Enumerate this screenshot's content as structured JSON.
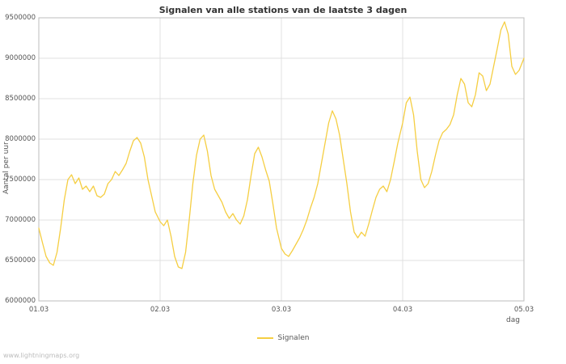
{
  "watermark": "www.lightningmaps.org",
  "chart_data": {
    "type": "line",
    "title": "Signalen van alle stations van de laatste 3 dagen",
    "xlabel": "dag",
    "ylabel": "Aantal per uur",
    "grid": true,
    "legend_position": "bottom-center",
    "xlim": [
      0,
      4
    ],
    "ylim": [
      6000000,
      9500000
    ],
    "yticks": [
      6000000,
      6500000,
      7000000,
      7500000,
      8000000,
      8500000,
      9000000,
      9500000
    ],
    "xticks": [
      {
        "label": "01.03",
        "pos": 0
      },
      {
        "label": "02.03",
        "pos": 1
      },
      {
        "label": "03.03",
        "pos": 2
      },
      {
        "label": "04.03",
        "pos": 3
      },
      {
        "label": "05.03",
        "pos": 4
      }
    ],
    "series": [
      {
        "name": "Signalen",
        "color": "#f5ce42",
        "x": [
          0,
          0.03,
          0.06,
          0.09,
          0.12,
          0.15,
          0.18,
          0.21,
          0.24,
          0.27,
          0.3,
          0.33,
          0.36,
          0.39,
          0.42,
          0.45,
          0.48,
          0.51,
          0.54,
          0.57,
          0.6,
          0.63,
          0.66,
          0.69,
          0.72,
          0.75,
          0.78,
          0.81,
          0.84,
          0.87,
          0.9,
          0.93,
          0.96,
          1,
          1.03,
          1.06,
          1.09,
          1.12,
          1.15,
          1.18,
          1.21,
          1.24,
          1.27,
          1.3,
          1.33,
          1.36,
          1.39,
          1.42,
          1.45,
          1.48,
          1.51,
          1.54,
          1.57,
          1.6,
          1.63,
          1.66,
          1.69,
          1.72,
          1.75,
          1.78,
          1.81,
          1.84,
          1.87,
          1.9,
          1.93,
          1.96,
          2,
          2.03,
          2.06,
          2.09,
          2.12,
          2.15,
          2.18,
          2.21,
          2.24,
          2.27,
          2.3,
          2.33,
          2.36,
          2.39,
          2.42,
          2.45,
          2.48,
          2.51,
          2.54,
          2.57,
          2.6,
          2.63,
          2.66,
          2.69,
          2.72,
          2.75,
          2.78,
          2.81,
          2.84,
          2.87,
          2.9,
          2.93,
          2.96,
          3,
          3.03,
          3.06,
          3.09,
          3.12,
          3.15,
          3.18,
          3.21,
          3.24,
          3.27,
          3.3,
          3.33,
          3.36,
          3.39,
          3.42,
          3.45,
          3.48,
          3.51,
          3.54,
          3.57,
          3.6,
          3.63,
          3.66,
          3.69,
          3.72,
          3.75,
          3.78,
          3.81,
          3.84,
          3.87,
          3.9,
          3.93,
          3.96,
          4
        ],
        "values": [
          6900000,
          6720000,
          6550000,
          6470000,
          6440000,
          6600000,
          6900000,
          7250000,
          7500000,
          7560000,
          7450000,
          7520000,
          7380000,
          7420000,
          7350000,
          7420000,
          7300000,
          7280000,
          7320000,
          7450000,
          7500000,
          7600000,
          7550000,
          7620000,
          7700000,
          7850000,
          7980000,
          8020000,
          7950000,
          7780000,
          7500000,
          7300000,
          7100000,
          6980000,
          6930000,
          7000000,
          6800000,
          6550000,
          6420000,
          6400000,
          6600000,
          7000000,
          7450000,
          7800000,
          8000000,
          8050000,
          7850000,
          7550000,
          7380000,
          7300000,
          7220000,
          7100000,
          7020000,
          7080000,
          7000000,
          6950000,
          7050000,
          7250000,
          7550000,
          7820000,
          7900000,
          7780000,
          7620000,
          7480000,
          7200000,
          6900000,
          6650000,
          6580000,
          6550000,
          6620000,
          6700000,
          6780000,
          6880000,
          7000000,
          7150000,
          7280000,
          7450000,
          7700000,
          7950000,
          8200000,
          8350000,
          8250000,
          8050000,
          7750000,
          7450000,
          7100000,
          6850000,
          6780000,
          6850000,
          6800000,
          6950000,
          7120000,
          7280000,
          7380000,
          7420000,
          7350000,
          7500000,
          7720000,
          7950000,
          8200000,
          8450000,
          8520000,
          8300000,
          7850000,
          7500000,
          7400000,
          7450000,
          7600000,
          7800000,
          7980000,
          8080000,
          8120000,
          8180000,
          8300000,
          8550000,
          8750000,
          8680000,
          8450000,
          8400000,
          8550000,
          8820000,
          8780000,
          8600000,
          8680000,
          8900000,
          9120000,
          9350000,
          9450000,
          9300000,
          8900000,
          8800000,
          8850000,
          9000000
        ]
      }
    ]
  }
}
